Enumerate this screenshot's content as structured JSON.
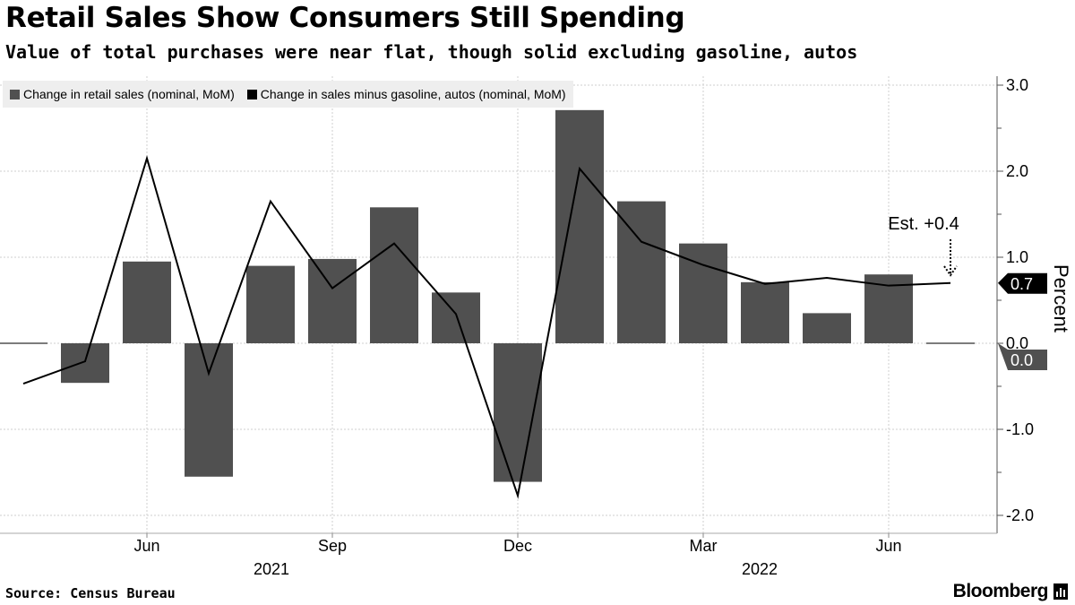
{
  "title": "Retail Sales Show Consumers Still Spending",
  "subtitle": "Value of total purchases were near flat, though solid excluding gasoline, autos",
  "source": "Source: Census Bureau",
  "logo": "Bloomberg",
  "colors": {
    "bars": "#505050",
    "line": "#000000"
  },
  "chart_data": {
    "type": "bar",
    "title": "Retail Sales Show Consumers Still Spending",
    "ylabel": "Percent",
    "ylim": [
      -2.2,
      3.1
    ],
    "yticks": [
      "3.0",
      "2.0",
      "1.0",
      "0.0",
      "-1.0",
      "-2.0"
    ],
    "ytick_values": [
      3,
      2,
      1,
      0,
      -1,
      -2
    ],
    "legend_position": "top-left",
    "months": [
      "Apr 2021",
      "May 2021",
      "Jun 2021",
      "Jul 2021",
      "Aug 2021",
      "Sep 2021",
      "Oct 2021",
      "Nov 2021",
      "Dec 2021",
      "Jan 2022",
      "Feb 2022",
      "Mar 2022",
      "Apr 2022",
      "May 2022",
      "Jun 2022",
      "Jul 2022"
    ],
    "xtick_labels": [
      {
        "index": 2,
        "label": "Jun"
      },
      {
        "index": 5,
        "label": "Sep"
      },
      {
        "index": 8,
        "label": "Dec"
      },
      {
        "index": 11,
        "label": "Mar"
      },
      {
        "index": 14,
        "label": "Jun"
      }
    ],
    "year_labels": [
      {
        "index": 5,
        "label": "2021"
      },
      {
        "index": 12,
        "label": "2022"
      }
    ],
    "series": [
      {
        "name": "Change in retail sales (nominal, MoM)",
        "type": "bar",
        "values": [
          0.0,
          -0.46,
          0.95,
          -1.55,
          0.9,
          0.98,
          1.58,
          0.59,
          -1.61,
          2.71,
          1.65,
          1.16,
          0.71,
          0.35,
          0.8,
          0.0
        ]
      },
      {
        "name": "Change in sales minus gasoline, autos (nominal, MoM)",
        "type": "line",
        "values": [
          -0.47,
          -0.21,
          2.15,
          -0.35,
          1.65,
          0.64,
          1.16,
          0.34,
          -1.77,
          2.03,
          1.18,
          0.91,
          0.69,
          0.76,
          0.67,
          0.7
        ]
      }
    ],
    "annotation": {
      "text": "Est. +0.4",
      "index": 15,
      "value": 0.4
    },
    "last_value_tags": [
      {
        "text": "0.7",
        "value": 0.7,
        "series": 1
      },
      {
        "text": "0.0",
        "value": 0.0,
        "series": 0
      }
    ]
  }
}
